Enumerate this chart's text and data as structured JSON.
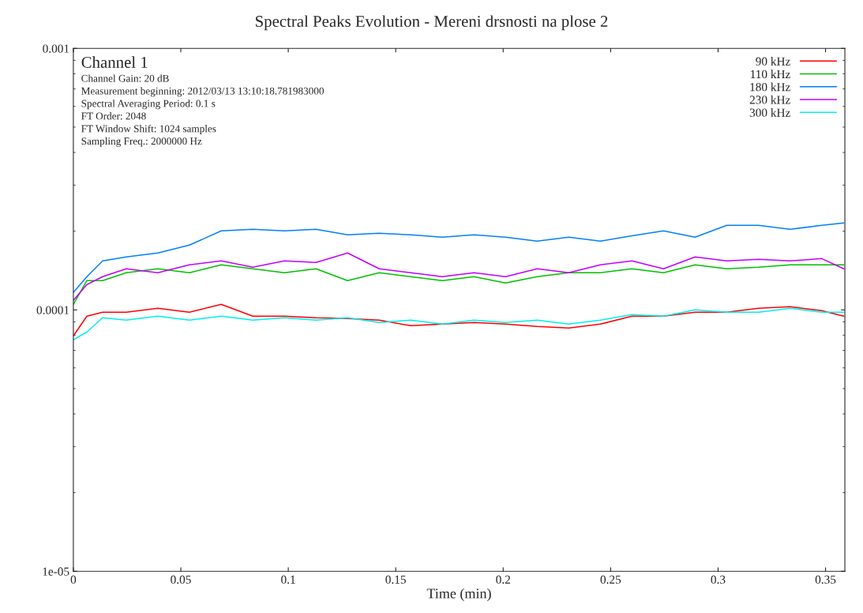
{
  "chart_data": {
    "type": "line",
    "title": "Spectral Peaks Evolution - Mereni drsnosti na plose 2",
    "xlabel": "Time (min)",
    "log": "y",
    "xlim": [
      0,
      0.359
    ],
    "ylim": [
      1e-05,
      0.001
    ],
    "xticks": [
      0,
      0.05,
      0.1,
      0.15,
      0.2,
      0.25,
      0.3,
      0.35
    ],
    "yticks": [
      {
        "value": 1e-05,
        "label": "1e-05"
      },
      {
        "value": 0.0001,
        "label": "0.0001"
      },
      {
        "value": 0.001,
        "label": "0.001"
      }
    ],
    "legend": "top right",
    "grid": false,
    "annotations": [
      "Channel 1",
      "Channel Gain: 20 dB",
      "Measurement beginning: 2012/03/13 13:10:18.781983000",
      "Spectral Averaging Period: 0.1 s",
      "FT Order: 2048",
      "FT Window Shift: 1024 samples",
      "Sampling Freq.: 2000000 Hz"
    ],
    "x": [
      0,
      0.0063,
      0.0136,
      0.0246,
      0.0393,
      0.054,
      0.0688,
      0.0835,
      0.0982,
      0.1129,
      0.1276,
      0.1423,
      0.157,
      0.1717,
      0.1864,
      0.2011,
      0.2158,
      0.2305,
      0.2452,
      0.2599,
      0.2746,
      0.2893,
      0.304,
      0.3188,
      0.3335,
      0.3482,
      0.3585
    ],
    "series": [
      {
        "name": "90 kHz",
        "color": "#ff0000",
        "values": [
          7.95e-05,
          9.46e-05,
          9.79e-05,
          9.79e-05,
          0.0001014,
          9.79e-05,
          0.000105,
          9.46e-05,
          9.46e-05,
          9.33e-05,
          9.26e-05,
          9.13e-05,
          8.7e-05,
          8.82e-05,
          8.95e-05,
          8.82e-05,
          8.64e-05,
          8.52e-05,
          8.82e-05,
          9.46e-05,
          9.46e-05,
          9.79e-05,
          9.79e-05,
          0.0001014,
          0.0001028,
          9.93e-05,
          9.46e-05
        ]
      },
      {
        "name": "110 kHz",
        "color": "#00c000",
        "values": [
          0.000105,
          0.0001294,
          0.0001294,
          0.0001387,
          0.0001436,
          0.0001387,
          0.0001487,
          0.0001436,
          0.0001387,
          0.0001436,
          0.0001294,
          0.0001387,
          0.000134,
          0.0001294,
          0.000134,
          0.0001267,
          0.000134,
          0.0001387,
          0.0001387,
          0.0001436,
          0.0001387,
          0.0001487,
          0.0001436,
          0.0001456,
          0.0001487,
          0.0001487,
          0.0001487
        ]
      },
      {
        "name": "180 kHz",
        "color": "#0080ff",
        "values": [
          0.0001166,
          0.000134,
          0.0001539,
          0.0001594,
          0.000165,
          0.0001769,
          0.0002005,
          0.0002033,
          0.0002005,
          0.0002033,
          0.0001936,
          0.0001964,
          0.0001936,
          0.0001897,
          0.0001936,
          0.0001897,
          0.0001832,
          0.0001897,
          0.0001832,
          0.000192,
          0.0002005,
          0.0001897,
          0.0002105,
          0.0002105,
          0.0002033,
          0.0002105,
          0.0002149
        ]
      },
      {
        "name": "230 kHz",
        "color": "#c000ff",
        "values": [
          0.0001087,
          0.000125,
          0.000134,
          0.0001436,
          0.0001387,
          0.0001487,
          0.0001539,
          0.0001456,
          0.0001539,
          0.0001518,
          0.000165,
          0.0001436,
          0.0001387,
          0.000134,
          0.0001387,
          0.000134,
          0.0001436,
          0.0001387,
          0.0001487,
          0.0001539,
          0.0001436,
          0.0001594,
          0.0001539,
          0.000156,
          0.0001539,
          0.0001571,
          0.0001436
        ]
      },
      {
        "name": "300 kHz",
        "color": "#00eeee",
        "values": [
          7.68e-05,
          8.23e-05,
          9.33e-05,
          9.13e-05,
          9.46e-05,
          9.13e-05,
          9.46e-05,
          9.13e-05,
          9.33e-05,
          9.13e-05,
          9.33e-05,
          8.95e-05,
          9.13e-05,
          8.82e-05,
          9.13e-05,
          8.95e-05,
          9.13e-05,
          8.82e-05,
          9.13e-05,
          9.59e-05,
          9.46e-05,
          0.0001,
          9.79e-05,
          9.79e-05,
          0.0001014,
          9.79e-05,
          9.79e-05
        ]
      }
    ]
  }
}
